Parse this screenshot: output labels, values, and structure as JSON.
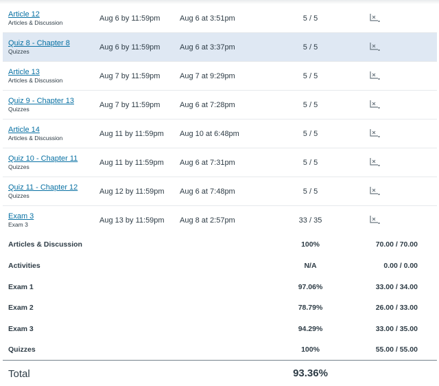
{
  "assignments": [
    {
      "name": "Article 12",
      "type": "Articles & Discussion",
      "due": "Aug 6 by 11:59pm",
      "submitted": "Aug 6 at 3:51pm",
      "score": "5 / 5",
      "highlight": false
    },
    {
      "name": "Quiz 8 - Chapter 8",
      "type": "Quizzes",
      "due": "Aug 6 by 11:59pm",
      "submitted": "Aug 6 at 3:37pm",
      "score": "5 / 5",
      "highlight": true
    },
    {
      "name": "Article 13",
      "type": "Articles & Discussion",
      "due": "Aug 7 by 11:59pm",
      "submitted": "Aug 7 at 9:29pm",
      "score": "5 / 5",
      "highlight": false
    },
    {
      "name": "Quiz 9 - Chapter 13",
      "type": "Quizzes",
      "due": "Aug 7 by 11:59pm",
      "submitted": "Aug 6 at 7:28pm",
      "score": "5 / 5",
      "highlight": false
    },
    {
      "name": "Article 14",
      "type": "Articles & Discussion",
      "due": "Aug 11 by 11:59pm",
      "submitted": "Aug 10 at 6:48pm",
      "score": "5 / 5",
      "highlight": false
    },
    {
      "name": "Quiz 10 - Chapter 11",
      "type": "Quizzes",
      "due": "Aug 11 by 11:59pm",
      "submitted": "Aug 6 at 7:31pm",
      "score": "5 / 5",
      "highlight": false
    },
    {
      "name": "Quiz 11 - Chapter 12",
      "type": "Quizzes",
      "due": "Aug 12 by 11:59pm",
      "submitted": "Aug 6 at 7:48pm",
      "score": "5 / 5",
      "highlight": false
    },
    {
      "name": "Exam 3",
      "type": "Exam 3",
      "due": "Aug 13 by 11:59pm",
      "submitted": "Aug 8 at 2:57pm",
      "score": "33 / 35",
      "highlight": false
    }
  ],
  "summary": [
    {
      "label": "Articles & Discussion",
      "percent": "100%",
      "points": "70.00 / 70.00"
    },
    {
      "label": "Activities",
      "percent": "N/A",
      "points": "0.00 / 0.00"
    },
    {
      "label": "Exam 1",
      "percent": "97.06%",
      "points": "33.00 / 34.00"
    },
    {
      "label": "Exam 2",
      "percent": "78.79%",
      "points": "26.00 / 33.00"
    },
    {
      "label": "Exam 3",
      "percent": "94.29%",
      "points": "33.00 / 35.00"
    },
    {
      "label": "Quizzes",
      "percent": "100%",
      "points": "55.00 / 55.00"
    }
  ],
  "total": {
    "label": "Total",
    "percent": "93.36%"
  },
  "icons": {
    "rubric": "rubric-icon"
  },
  "colors": {
    "link": "#0770a3",
    "highlight": "#dfe8f3",
    "text": "#2d3b45"
  }
}
